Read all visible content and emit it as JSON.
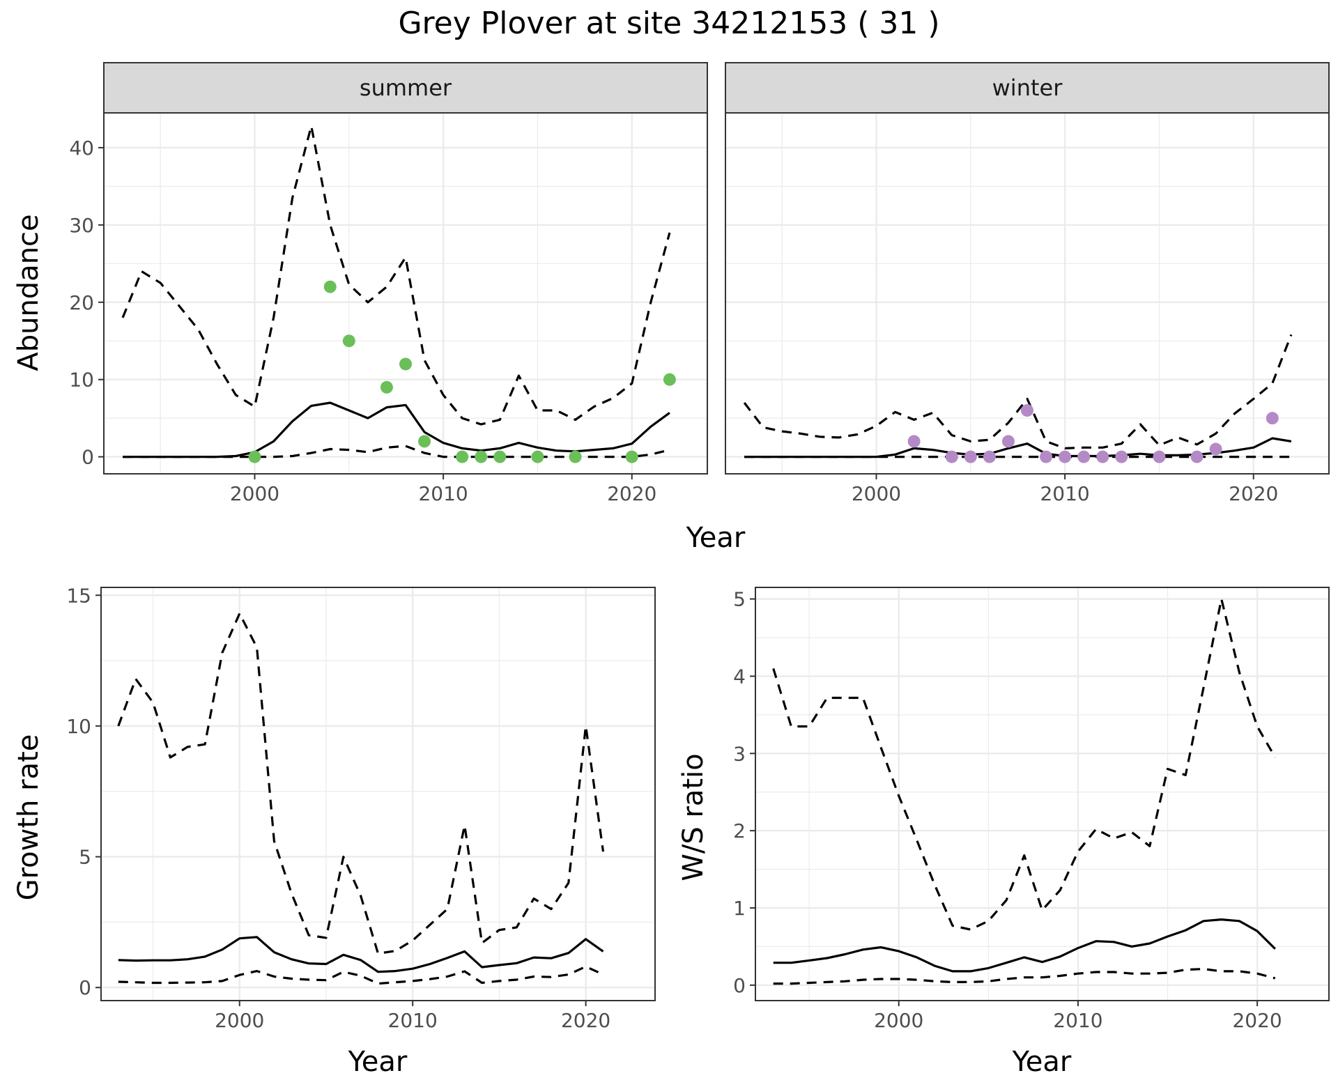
{
  "title": "Grey Plover at site 34212153 ( 31 )",
  "colors": {
    "summer_points": "#6bbf59",
    "winter_points": "#b48ac6"
  },
  "chart_data": [
    {
      "id": "abundance-summer",
      "type": "line",
      "strip": "summer",
      "xlabel": "",
      "ylabel": "Abundance",
      "xlim": [
        1992,
        2024
      ],
      "ylim": [
        -2.2,
        44.5
      ],
      "xticks": [
        2000,
        2010,
        2020
      ],
      "yticks": [
        0,
        10,
        20,
        30,
        40
      ],
      "series": [
        {
          "role": "mean",
          "x": [
            1993,
            1994,
            1995,
            1996,
            1997,
            1998,
            1999,
            2000,
            2001,
            2002,
            2003,
            2004,
            2005,
            2006,
            2007,
            2008,
            2009,
            2010,
            2011,
            2012,
            2013,
            2014,
            2015,
            2016,
            2017,
            2018,
            2019,
            2020,
            2021,
            2022
          ],
          "y": [
            0,
            0,
            0,
            0,
            0,
            0,
            0.1,
            0.6,
            2.0,
            4.6,
            6.6,
            7.0,
            6.0,
            5.0,
            6.4,
            6.7,
            3.2,
            1.8,
            1.1,
            0.8,
            1.1,
            1.8,
            1.2,
            0.8,
            0.7,
            0.9,
            1.1,
            1.7,
            3.9,
            5.7
          ]
        },
        {
          "role": "upper",
          "x": [
            1993,
            1994,
            1995,
            1996,
            1997,
            1998,
            1999,
            2000,
            2001,
            2002,
            2003,
            2004,
            2005,
            2006,
            2007,
            2008,
            2009,
            2010,
            2011,
            2012,
            2013,
            2014,
            2015,
            2016,
            2017,
            2018,
            2019,
            2020,
            2021,
            2022
          ],
          "y": [
            18,
            24,
            22.5,
            19.5,
            16.5,
            12,
            8,
            6.5,
            18,
            33.5,
            42.8,
            30,
            22.3,
            20,
            22,
            25.8,
            12.5,
            8,
            5,
            4.2,
            4.8,
            10.5,
            6,
            6,
            4.8,
            6.5,
            7.6,
            9.5,
            20,
            29
          ]
        },
        {
          "role": "lower",
          "x": [
            1993,
            1994,
            1995,
            1996,
            1997,
            1998,
            1999,
            2000,
            2001,
            2002,
            2003,
            2004,
            2005,
            2006,
            2007,
            2008,
            2009,
            2010,
            2011,
            2012,
            2013,
            2014,
            2015,
            2016,
            2017,
            2018,
            2019,
            2020,
            2021,
            2022
          ],
          "y": [
            0,
            0,
            0,
            0,
            0,
            0,
            0,
            0,
            0,
            0.1,
            0.5,
            1.0,
            0.9,
            0.6,
            1.2,
            1.4,
            0.5,
            0,
            0,
            0,
            0,
            0,
            0,
            0,
            0,
            0,
            0,
            0,
            0.3,
            0.9
          ]
        },
        {
          "role": "observed",
          "x": [
            2000,
            2004,
            2005,
            2007,
            2008,
            2009,
            2011,
            2012,
            2013,
            2015,
            2017,
            2020,
            2022
          ],
          "y": [
            0,
            22,
            15,
            9,
            12,
            2,
            0,
            0,
            0,
            0,
            0,
            0,
            10
          ]
        }
      ]
    },
    {
      "id": "abundance-winter",
      "type": "line",
      "strip": "winter",
      "xlabel": "",
      "ylabel": "",
      "xlim": [
        1992,
        2024
      ],
      "ylim": [
        -2.2,
        44.5
      ],
      "xticks": [
        2000,
        2010,
        2020
      ],
      "yticks": [],
      "series": [
        {
          "role": "mean",
          "x": [
            1993,
            1994,
            1995,
            1996,
            1997,
            1998,
            1999,
            2000,
            2001,
            2002,
            2003,
            2004,
            2005,
            2006,
            2007,
            2008,
            2009,
            2010,
            2011,
            2012,
            2013,
            2014,
            2015,
            2016,
            2017,
            2018,
            2019,
            2020,
            2021,
            2022
          ],
          "y": [
            0,
            0,
            0,
            0,
            0,
            0,
            0,
            0,
            0.3,
            1.1,
            0.9,
            0.5,
            0.3,
            0.4,
            1.1,
            1.7,
            0.4,
            0.1,
            0.1,
            0.1,
            0.2,
            0.4,
            0.2,
            0.2,
            0.3,
            0.5,
            0.8,
            1.2,
            2.4,
            2.0
          ]
        },
        {
          "role": "upper",
          "x": [
            1993,
            1994,
            1995,
            1996,
            1997,
            1998,
            1999,
            2000,
            2001,
            2002,
            2003,
            2004,
            2005,
            2006,
            2007,
            2008,
            2009,
            2010,
            2011,
            2012,
            2013,
            2014,
            2015,
            2016,
            2017,
            2018,
            2019,
            2020,
            2021,
            2022
          ],
          "y": [
            7,
            3.8,
            3.3,
            3,
            2.6,
            2.5,
            2.9,
            4,
            5.8,
            4.8,
            5.7,
            2.8,
            2.0,
            2.2,
            4.4,
            7.5,
            2,
            1.1,
            1.2,
            1.2,
            1.7,
            4.2,
            1.5,
            2.5,
            1.6,
            3.0,
            5.6,
            7.5,
            9.5,
            15.8
          ]
        },
        {
          "role": "lower",
          "x": [
            1993,
            1994,
            1995,
            1996,
            1997,
            1998,
            1999,
            2000,
            2001,
            2002,
            2003,
            2004,
            2005,
            2006,
            2007,
            2008,
            2009,
            2010,
            2011,
            2012,
            2013,
            2014,
            2015,
            2016,
            2017,
            2018,
            2019,
            2020,
            2021,
            2022
          ],
          "y": [
            0,
            0,
            0,
            0,
            0,
            0,
            0,
            0,
            0,
            0,
            0,
            0,
            0,
            0,
            0,
            0,
            0,
            0,
            0,
            0,
            0,
            0,
            0,
            0,
            0,
            0,
            0,
            0,
            0,
            0
          ]
        },
        {
          "role": "observed",
          "x": [
            2002,
            2004,
            2005,
            2006,
            2007,
            2008,
            2009,
            2010,
            2011,
            2012,
            2013,
            2015,
            2017,
            2018,
            2021
          ],
          "y": [
            2,
            0,
            0,
            0,
            2,
            6,
            0,
            0,
            0,
            0,
            0,
            0,
            0,
            1,
            5
          ]
        }
      ]
    },
    {
      "id": "growth-rate",
      "type": "line",
      "xlabel": "Year",
      "ylabel": "Growth rate",
      "xlim": [
        1992,
        2024
      ],
      "ylim": [
        -0.5,
        15.3
      ],
      "xticks": [
        2000,
        2010,
        2020
      ],
      "yticks": [
        0,
        5,
        10,
        15
      ],
      "series": [
        {
          "role": "mean",
          "x": [
            1993,
            1994,
            1995,
            1996,
            1997,
            1998,
            1999,
            2000,
            2001,
            2002,
            2003,
            2004,
            2005,
            2006,
            2007,
            2008,
            2009,
            2010,
            2011,
            2012,
            2013,
            2014,
            2015,
            2016,
            2017,
            2018,
            2019,
            2020,
            2021
          ],
          "y": [
            1.05,
            1.03,
            1.04,
            1.04,
            1.08,
            1.18,
            1.45,
            1.88,
            1.93,
            1.35,
            1.08,
            0.92,
            0.9,
            1.25,
            1.05,
            0.6,
            0.63,
            0.72,
            0.9,
            1.13,
            1.38,
            0.78,
            0.86,
            0.93,
            1.15,
            1.12,
            1.32,
            1.85,
            1.38
          ]
        },
        {
          "role": "upper",
          "x": [
            1993,
            1994,
            1995,
            1996,
            1997,
            1998,
            1999,
            2000,
            2001,
            2002,
            2003,
            2004,
            2005,
            2006,
            2007,
            2008,
            2009,
            2010,
            2011,
            2012,
            2013,
            2014,
            2015,
            2016,
            2017,
            2018,
            2019,
            2020,
            2021
          ],
          "y": [
            10,
            11.8,
            10.9,
            8.8,
            9.2,
            9.3,
            12.8,
            14.3,
            13.0,
            5.6,
            3.6,
            2.0,
            1.9,
            5.0,
            3.5,
            1.3,
            1.4,
            1.8,
            2.4,
            3.0,
            6.2,
            1.7,
            2.2,
            2.3,
            3.4,
            3.0,
            4.0,
            10.0,
            5.2
          ]
        },
        {
          "role": "lower",
          "x": [
            1993,
            1994,
            1995,
            1996,
            1997,
            1998,
            1999,
            2000,
            2001,
            2002,
            2003,
            2004,
            2005,
            2006,
            2007,
            2008,
            2009,
            2010,
            2011,
            2012,
            2013,
            2014,
            2015,
            2016,
            2017,
            2018,
            2019,
            2020,
            2021
          ],
          "y": [
            0.22,
            0.2,
            0.18,
            0.18,
            0.19,
            0.2,
            0.25,
            0.48,
            0.63,
            0.42,
            0.34,
            0.3,
            0.28,
            0.6,
            0.45,
            0.15,
            0.2,
            0.25,
            0.32,
            0.42,
            0.62,
            0.18,
            0.25,
            0.3,
            0.42,
            0.4,
            0.5,
            0.8,
            0.5
          ]
        }
      ]
    },
    {
      "id": "ws-ratio",
      "type": "line",
      "xlabel": "Year",
      "ylabel": "W/S ratio",
      "xlim": [
        1992,
        2024
      ],
      "ylim": [
        -0.2,
        5.15
      ],
      "xticks": [
        2000,
        2010,
        2020
      ],
      "yticks": [
        0,
        1,
        2,
        3,
        4,
        5
      ],
      "series": [
        {
          "role": "mean",
          "x": [
            1993,
            1994,
            1995,
            1996,
            1997,
            1998,
            1999,
            2000,
            2001,
            2002,
            2003,
            2004,
            2005,
            2006,
            2007,
            2008,
            2009,
            2010,
            2011,
            2012,
            2013,
            2014,
            2015,
            2016,
            2017,
            2018,
            2019,
            2020,
            2021
          ],
          "y": [
            0.29,
            0.29,
            0.32,
            0.35,
            0.4,
            0.46,
            0.49,
            0.44,
            0.36,
            0.25,
            0.18,
            0.18,
            0.22,
            0.29,
            0.36,
            0.3,
            0.37,
            0.48,
            0.57,
            0.56,
            0.5,
            0.54,
            0.63,
            0.71,
            0.83,
            0.85,
            0.83,
            0.7,
            0.47
          ]
        },
        {
          "role": "upper",
          "x": [
            1993,
            1994,
            1995,
            1996,
            1997,
            1998,
            1999,
            2000,
            2001,
            2002,
            2003,
            2004,
            2005,
            2006,
            2007,
            2008,
            2009,
            2010,
            2011,
            2012,
            2013,
            2014,
            2015,
            2016,
            2017,
            2018,
            2019,
            2020,
            2021
          ],
          "y": [
            4.1,
            3.35,
            3.35,
            3.72,
            3.72,
            3.72,
            3.08,
            2.45,
            1.88,
            1.3,
            0.77,
            0.72,
            0.83,
            1.1,
            1.68,
            0.97,
            1.23,
            1.73,
            2.02,
            1.9,
            1.98,
            1.8,
            2.8,
            2.72,
            3.85,
            5.0,
            4.05,
            3.35,
            2.95
          ]
        },
        {
          "role": "lower",
          "x": [
            1993,
            1994,
            1995,
            1996,
            1997,
            1998,
            1999,
            2000,
            2001,
            2002,
            2003,
            2004,
            2005,
            2006,
            2007,
            2008,
            2009,
            2010,
            2011,
            2012,
            2013,
            2014,
            2015,
            2016,
            2017,
            2018,
            2019,
            2020,
            2021
          ],
          "y": [
            0.02,
            0.02,
            0.03,
            0.04,
            0.05,
            0.07,
            0.08,
            0.08,
            0.07,
            0.05,
            0.04,
            0.04,
            0.05,
            0.08,
            0.1,
            0.1,
            0.12,
            0.15,
            0.17,
            0.17,
            0.15,
            0.15,
            0.16,
            0.2,
            0.21,
            0.18,
            0.18,
            0.15,
            0.09
          ]
        }
      ]
    }
  ]
}
